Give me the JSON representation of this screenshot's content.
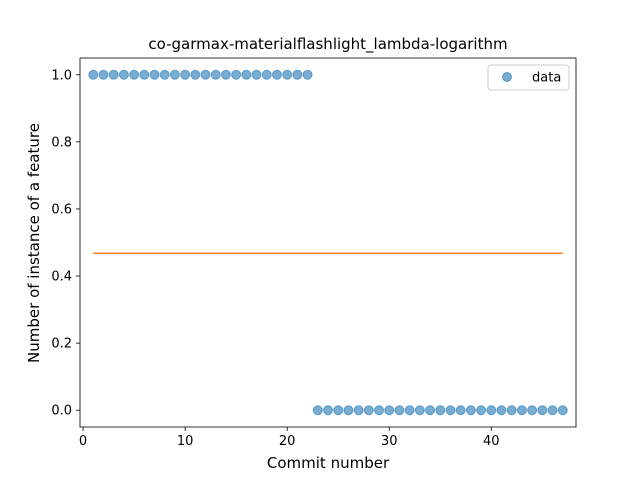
{
  "chart_data": {
    "type": "scatter",
    "title": "co-garmax-materialflashlight_lambda-logarithm",
    "xlabel": "Commit number",
    "ylabel": "Number of instance of a feature",
    "xlim": [
      -0.3,
      48.3
    ],
    "ylim": [
      -0.05,
      1.05
    ],
    "xticks": [
      0,
      10,
      20,
      30,
      40
    ],
    "yticks": [
      0.0,
      0.2,
      0.4,
      0.6,
      0.8,
      1.0
    ],
    "xtick_labels": [
      "0",
      "10",
      "20",
      "30",
      "40"
    ],
    "ytick_labels": [
      "0.0",
      "0.2",
      "0.4",
      "0.6",
      "0.8",
      "1.0"
    ],
    "grid": false,
    "legend": {
      "placement": "upper-right",
      "entries": [
        "data"
      ]
    },
    "series": [
      {
        "name": "data",
        "kind": "scatter",
        "color": "#1f77b4",
        "x": [
          1,
          2,
          3,
          4,
          5,
          6,
          7,
          8,
          9,
          10,
          11,
          12,
          13,
          14,
          15,
          16,
          17,
          18,
          19,
          20,
          21,
          22,
          23,
          24,
          25,
          26,
          27,
          28,
          29,
          30,
          31,
          32,
          33,
          34,
          35,
          36,
          37,
          38,
          39,
          40,
          41,
          42,
          43,
          44,
          45,
          46,
          47
        ],
        "y": [
          1,
          1,
          1,
          1,
          1,
          1,
          1,
          1,
          1,
          1,
          1,
          1,
          1,
          1,
          1,
          1,
          1,
          1,
          1,
          1,
          1,
          1,
          0,
          0,
          0,
          0,
          0,
          0,
          0,
          0,
          0,
          0,
          0,
          0,
          0,
          0,
          0,
          0,
          0,
          0,
          0,
          0,
          0,
          0,
          0,
          0,
          0
        ]
      },
      {
        "kind": "line",
        "color": "#ff7f0e",
        "x": [
          1,
          47
        ],
        "y": [
          0.468,
          0.468
        ]
      }
    ]
  }
}
